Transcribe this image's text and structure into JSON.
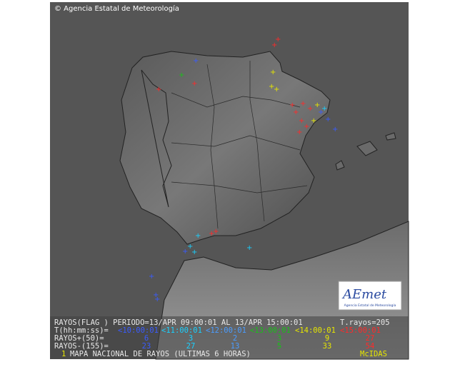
{
  "header": {
    "copyright": "© Agencia Estatal de Meteorología"
  },
  "legend": {
    "title": "RAYOS(FLAG ) PERIODO=13/APR 09:00:01 AL 13/APR 15:00:01",
    "total": "T.rayos=205",
    "time_label": "T(hh:mm:ss)=",
    "times": [
      "<10:00:01",
      "<11:00:01",
      "<12:00:01",
      "<13:00:01",
      "<14:00:01",
      "<15:00:01"
    ],
    "positive_label": "RAYOS+(50)=",
    "positive": [
      6,
      3,
      2,
      3,
      9,
      27
    ],
    "negative_label": "RAYOS-(155)=",
    "negative": [
      23,
      27,
      13,
      5,
      33,
      54
    ]
  },
  "footer": {
    "index": "1",
    "title": "MAPA NACIONAL DE RAYOS (ULTIMAS 6 HORAS)",
    "software": "McIDAS"
  },
  "logo": {
    "name": "AEmet",
    "subtitle": "Agencia Estatal de Meteorología"
  }
}
